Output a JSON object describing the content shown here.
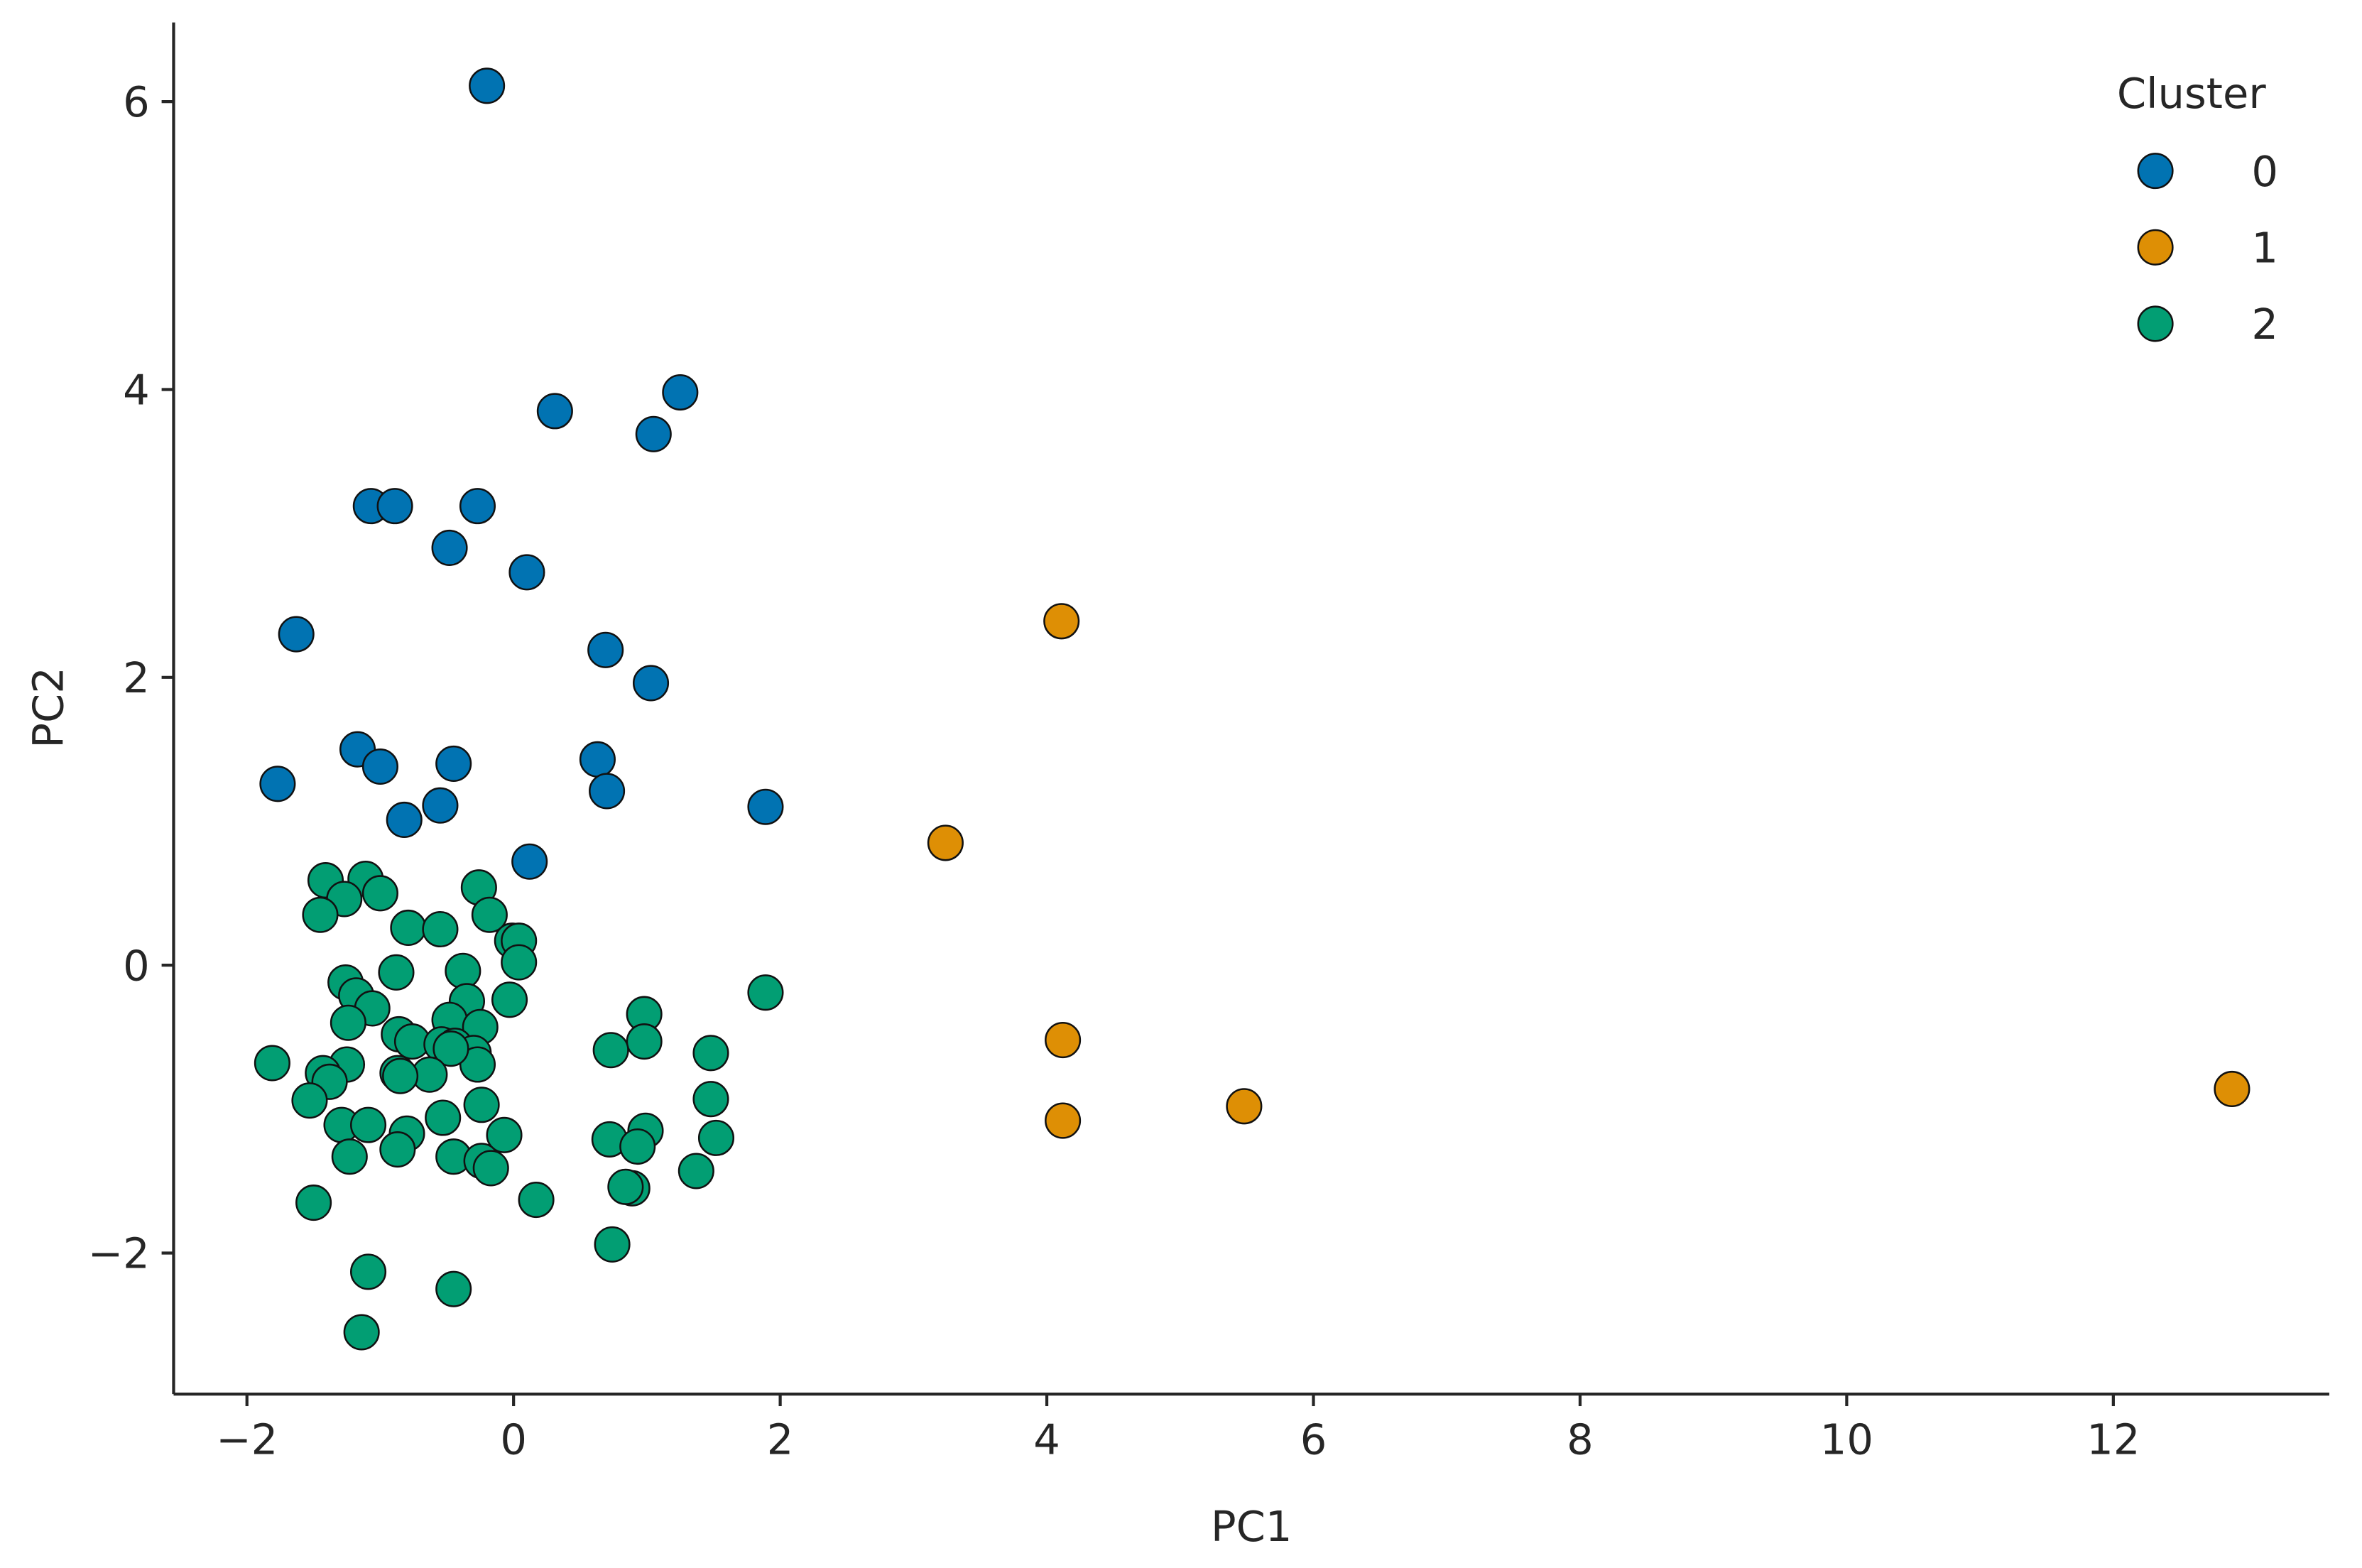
{
  "chart_data": {
    "type": "scatter",
    "x_label": "PC1",
    "y_label": "PC2",
    "xlim": [
      -2.55,
      13.62
    ],
    "ylim": [
      -2.98,
      6.55
    ],
    "xticks": [
      {
        "value": -2,
        "label": "−2"
      },
      0,
      2,
      4,
      6,
      8,
      10,
      12
    ],
    "yticks": [
      {
        "value": -2,
        "label": "−2"
      },
      0,
      2,
      4,
      6
    ],
    "legend_title": "Cluster",
    "legend_position": "upper right",
    "series": [
      {
        "name": "0",
        "color": "#0173b2",
        "x": [
          -0.2,
          0.31,
          1.25,
          1.05,
          -1.07,
          -0.89,
          -0.27,
          -0.48,
          0.1,
          -1.63,
          0.69,
          1.03,
          -1.17,
          -1.0,
          -0.45,
          -1.77,
          0.63,
          0.7,
          -0.55,
          -0.82,
          1.89,
          0.12
        ],
        "values": [
          6.11,
          3.85,
          3.98,
          3.69,
          3.19,
          3.19,
          3.19,
          2.9,
          2.73,
          2.3,
          2.19,
          1.96,
          1.5,
          1.38,
          1.4,
          1.26,
          1.43,
          1.21,
          1.11,
          1.01,
          1.1,
          0.72
        ]
      },
      {
        "name": "1",
        "color": "#de8f05",
        "x": [
          4.11,
          3.24,
          4.12,
          4.12,
          5.48,
          12.89
        ],
        "values": [
          2.39,
          0.85,
          -0.52,
          -1.08,
          -0.98,
          -0.86
        ]
      },
      {
        "name": "2",
        "color": "#029e73",
        "x": [
          -1.41,
          -1.11,
          -1.27,
          -1.0,
          -1.45,
          -0.26,
          -0.18,
          -0.79,
          -0.55,
          -0.01,
          0.04,
          0.04,
          -0.38,
          -0.88,
          -1.26,
          -1.18,
          -0.03,
          -0.35,
          1.89,
          -1.06,
          -0.48,
          -0.25,
          -1.24,
          -0.86,
          -0.76,
          -0.54,
          -0.44,
          -0.3,
          -0.27,
          -0.47,
          0.98,
          0.98,
          0.73,
          1.48,
          -1.81,
          -1.25,
          -1.43,
          -1.38,
          -0.87,
          -0.63,
          -0.85,
          -1.53,
          -0.24,
          1.48,
          -0.53,
          -1.29,
          -1.09,
          -0.8,
          -0.07,
          0.72,
          0.99,
          1.52,
          0.93,
          -0.87,
          -1.23,
          -0.45,
          -0.24,
          -0.17,
          1.37,
          0.89,
          0.84,
          -1.5,
          0.17,
          0.74,
          -1.09,
          -0.45,
          -1.14
        ],
        "values": [
          0.59,
          0.6,
          0.46,
          0.5,
          0.35,
          0.54,
          0.35,
          0.26,
          0.25,
          0.17,
          0.17,
          0.02,
          -0.04,
          -0.05,
          -0.12,
          -0.21,
          -0.24,
          -0.25,
          -0.19,
          -0.3,
          -0.38,
          -0.43,
          -0.4,
          -0.48,
          -0.53,
          -0.55,
          -0.56,
          -0.61,
          -0.69,
          -0.58,
          -0.34,
          -0.53,
          -0.59,
          -0.61,
          -0.68,
          -0.69,
          -0.75,
          -0.81,
          -0.75,
          -0.76,
          -0.77,
          -0.94,
          -0.97,
          -0.93,
          -1.06,
          -1.11,
          -1.11,
          -1.17,
          -1.18,
          -1.21,
          -1.15,
          -1.2,
          -1.26,
          -1.28,
          -1.33,
          -1.33,
          -1.36,
          -1.41,
          -1.43,
          -1.55,
          -1.54,
          -1.65,
          -1.63,
          -1.94,
          -2.13,
          -2.25,
          -2.55
        ]
      }
    ]
  }
}
